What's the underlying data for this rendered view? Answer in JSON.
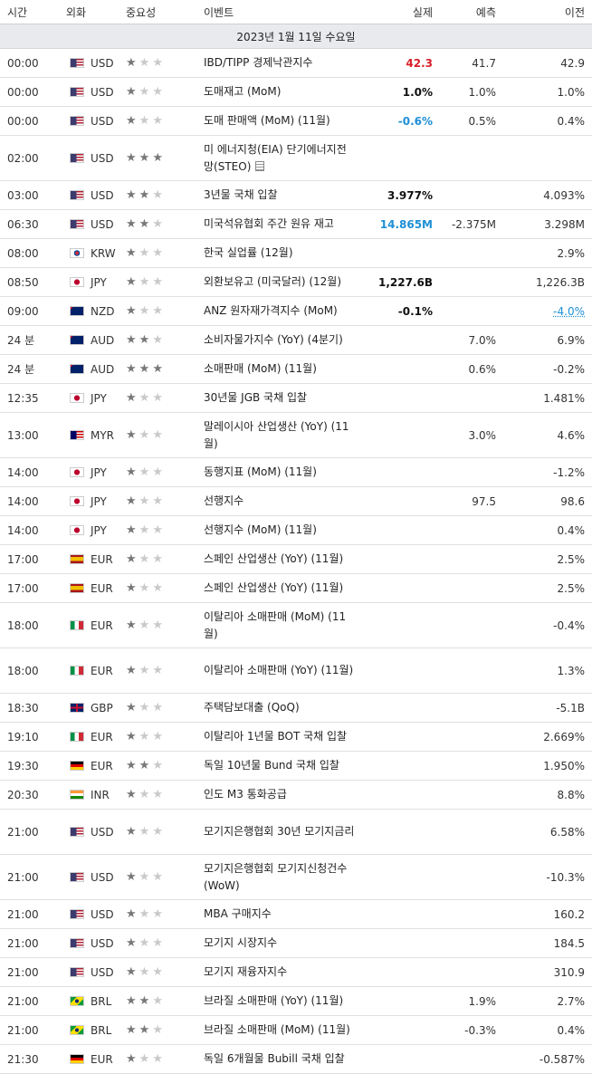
{
  "headers": {
    "time": "시간",
    "currency": "외화",
    "importance": "중요성",
    "event": "이벤트",
    "actual": "실제",
    "forecast": "예측",
    "previous": "이전"
  },
  "date_label": "2023년 1월 11일 수요일",
  "colors": {
    "up": "#d9202a",
    "down": "#1e8fd6",
    "date_bg": "#e9eaee"
  },
  "rows": [
    {
      "time": "00:00",
      "flag": "us",
      "cur": "USD",
      "imp": 1,
      "event": "IBD/TIPP 경제낙관지수",
      "actual": "42.3",
      "actual_style": "red",
      "forecast": "41.7",
      "previous": "42.9",
      "tall": false
    },
    {
      "time": "00:00",
      "flag": "us",
      "cur": "USD",
      "imp": 1,
      "event": "도매재고 (MoM)",
      "actual": "1.0%",
      "actual_style": "black",
      "forecast": "1.0%",
      "previous": "1.0%",
      "tall": false
    },
    {
      "time": "00:00",
      "flag": "us",
      "cur": "USD",
      "imp": 1,
      "event": "도매 판매액 (MoM) (11월)",
      "actual": "-0.6%",
      "actual_style": "blue",
      "forecast": "0.5%",
      "previous": "0.4%",
      "tall": false
    },
    {
      "time": "02:00",
      "flag": "us",
      "cur": "USD",
      "imp": 3,
      "event": "미 에너지청(EIA) 단기에너지전망(STEO)",
      "actual": "",
      "actual_style": "",
      "forecast": "",
      "previous": "",
      "tall": true,
      "doc": true
    },
    {
      "time": "03:00",
      "flag": "us",
      "cur": "USD",
      "imp": 2,
      "event": "3년물 국채 입찰",
      "actual": "3.977%",
      "actual_style": "black",
      "forecast": "",
      "previous": "4.093%",
      "tall": false
    },
    {
      "time": "06:30",
      "flag": "us",
      "cur": "USD",
      "imp": 2,
      "event": "미국석유협회 주간 원유 재고",
      "actual": "14.865M",
      "actual_style": "blue",
      "forecast": "-2.375M",
      "previous": "3.298M",
      "tall": false
    },
    {
      "time": "08:00",
      "flag": "kr",
      "cur": "KRW",
      "imp": 1,
      "event": "한국 실업률 (12월)",
      "actual": "",
      "actual_style": "",
      "forecast": "",
      "previous": "2.9%",
      "tall": false
    },
    {
      "time": "08:50",
      "flag": "jp",
      "cur": "JPY",
      "imp": 1,
      "event": "외환보유고 (미국달러) (12월)",
      "actual": "1,227.6B",
      "actual_style": "black",
      "forecast": "",
      "previous": "1,226.3B",
      "tall": false
    },
    {
      "time": "09:00",
      "flag": "nz",
      "cur": "NZD",
      "imp": 1,
      "event": "ANZ 원자재가격지수 (MoM)",
      "actual": "-0.1%",
      "actual_style": "black",
      "forecast": "",
      "previous": "-4.0%",
      "prev_underline": true,
      "tall": false
    },
    {
      "time": "24 분",
      "flag": "au",
      "cur": "AUD",
      "imp": 2,
      "event": "소비자물가지수 (YoY) (4분기)",
      "actual": "",
      "actual_style": "",
      "forecast": "7.0%",
      "previous": "6.9%",
      "tall": false
    },
    {
      "time": "24 분",
      "flag": "au",
      "cur": "AUD",
      "imp": 3,
      "event": "소매판매 (MoM) (11월)",
      "actual": "",
      "actual_style": "",
      "forecast": "0.6%",
      "previous": "-0.2%",
      "tall": false
    },
    {
      "time": "12:35",
      "flag": "jp",
      "cur": "JPY",
      "imp": 1,
      "event": "30년물 JGB 국채 입찰",
      "actual": "",
      "actual_style": "",
      "forecast": "",
      "previous": "1.481%",
      "tall": false
    },
    {
      "time": "13:00",
      "flag": "my",
      "cur": "MYR",
      "imp": 1,
      "event": "말레이시아 산업생산 (YoY) (11월)",
      "actual": "",
      "actual_style": "",
      "forecast": "3.0%",
      "previous": "4.6%",
      "tall": true
    },
    {
      "time": "14:00",
      "flag": "jp",
      "cur": "JPY",
      "imp": 1,
      "event": "동행지표 (MoM) (11월)",
      "actual": "",
      "actual_style": "",
      "forecast": "",
      "previous": "-1.2%",
      "tall": false
    },
    {
      "time": "14:00",
      "flag": "jp",
      "cur": "JPY",
      "imp": 1,
      "event": "선행지수",
      "actual": "",
      "actual_style": "",
      "forecast": "97.5",
      "previous": "98.6",
      "tall": false
    },
    {
      "time": "14:00",
      "flag": "jp",
      "cur": "JPY",
      "imp": 1,
      "event": "선행지수 (MoM) (11월)",
      "actual": "",
      "actual_style": "",
      "forecast": "",
      "previous": "0.4%",
      "tall": false
    },
    {
      "time": "17:00",
      "flag": "es",
      "cur": "EUR",
      "imp": 1,
      "event": "스페인 산업생산 (YoY) (11월)",
      "actual": "",
      "actual_style": "",
      "forecast": "",
      "previous": "2.5%",
      "tall": false
    },
    {
      "time": "17:00",
      "flag": "es",
      "cur": "EUR",
      "imp": 1,
      "event": "스페인 산업생산 (YoY) (11월)",
      "actual": "",
      "actual_style": "",
      "forecast": "",
      "previous": "2.5%",
      "tall": false
    },
    {
      "time": "18:00",
      "flag": "it",
      "cur": "EUR",
      "imp": 1,
      "event": "이탈리아 소매판매 (MoM) (11월)",
      "actual": "",
      "actual_style": "",
      "forecast": "",
      "previous": "-0.4%",
      "tall": true
    },
    {
      "time": "18:00",
      "flag": "it",
      "cur": "EUR",
      "imp": 1,
      "event": "이탈리아 소매판매 (YoY) (11월)",
      "actual": "",
      "actual_style": "",
      "forecast": "",
      "previous": "1.3%",
      "tall": true
    },
    {
      "time": "18:30",
      "flag": "gb",
      "cur": "GBP",
      "imp": 1,
      "event": "주택담보대출 (QoQ)",
      "actual": "",
      "actual_style": "",
      "forecast": "",
      "previous": "-5.1B",
      "tall": false
    },
    {
      "time": "19:10",
      "flag": "it",
      "cur": "EUR",
      "imp": 1,
      "event": "이탈리아 1년물 BOT 국채 입찰",
      "actual": "",
      "actual_style": "",
      "forecast": "",
      "previous": "2.669%",
      "tall": false
    },
    {
      "time": "19:30",
      "flag": "de",
      "cur": "EUR",
      "imp": 2,
      "event": "독일 10년물 Bund 국채 입찰",
      "actual": "",
      "actual_style": "",
      "forecast": "",
      "previous": "1.950%",
      "tall": false
    },
    {
      "time": "20:30",
      "flag": "in",
      "cur": "INR",
      "imp": 1,
      "event": "인도 M3 통화공급",
      "actual": "",
      "actual_style": "",
      "forecast": "",
      "previous": "8.8%",
      "tall": false
    },
    {
      "time": "21:00",
      "flag": "us",
      "cur": "USD",
      "imp": 1,
      "event": "모기지은행협회 30년 모기지금리",
      "actual": "",
      "actual_style": "",
      "forecast": "",
      "previous": "6.58%",
      "tall": true
    },
    {
      "time": "21:00",
      "flag": "us",
      "cur": "USD",
      "imp": 1,
      "event": "모기지은행협회 모기지신청건수 (WoW)",
      "actual": "",
      "actual_style": "",
      "forecast": "",
      "previous": "-10.3%",
      "tall": true
    },
    {
      "time": "21:00",
      "flag": "us",
      "cur": "USD",
      "imp": 1,
      "event": "MBA 구매지수",
      "actual": "",
      "actual_style": "",
      "forecast": "",
      "previous": "160.2",
      "tall": false
    },
    {
      "time": "21:00",
      "flag": "us",
      "cur": "USD",
      "imp": 1,
      "event": "모기지 시장지수",
      "actual": "",
      "actual_style": "",
      "forecast": "",
      "previous": "184.5",
      "tall": false
    },
    {
      "time": "21:00",
      "flag": "us",
      "cur": "USD",
      "imp": 1,
      "event": "모기지 재융자지수",
      "actual": "",
      "actual_style": "",
      "forecast": "",
      "previous": "310.9",
      "tall": false
    },
    {
      "time": "21:00",
      "flag": "br",
      "cur": "BRL",
      "imp": 2,
      "event": "브라질 소매판매 (YoY) (11월)",
      "actual": "",
      "actual_style": "",
      "forecast": "1.9%",
      "previous": "2.7%",
      "tall": false
    },
    {
      "time": "21:00",
      "flag": "br",
      "cur": "BRL",
      "imp": 2,
      "event": "브라질 소매판매 (MoM) (11월)",
      "actual": "",
      "actual_style": "",
      "forecast": "-0.3%",
      "previous": "0.4%",
      "tall": false
    },
    {
      "time": "21:30",
      "flag": "de",
      "cur": "EUR",
      "imp": 1,
      "event": "독일 6개월물 Bubill 국채 입찰",
      "actual": "",
      "actual_style": "",
      "forecast": "",
      "previous": "-0.587%",
      "tall": false
    }
  ]
}
